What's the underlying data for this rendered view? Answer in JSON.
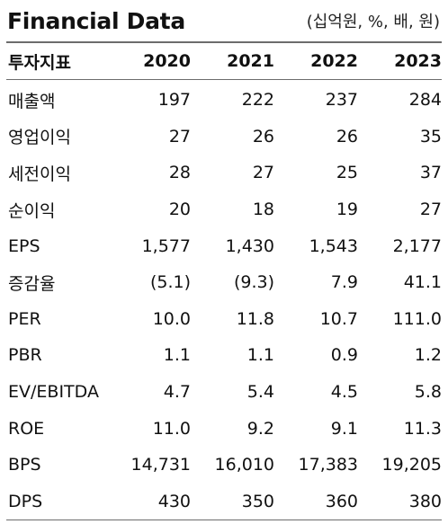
{
  "header": {
    "title": "Financial Data",
    "unit": "(십억원, %, 배, 원)"
  },
  "table": {
    "columns": [
      "투자지표",
      "2020",
      "2021",
      "2022",
      "2023"
    ],
    "rows": [
      {
        "label": "매출액",
        "values": [
          "197",
          "222",
          "237",
          "284"
        ]
      },
      {
        "label": "영업이익",
        "values": [
          "27",
          "26",
          "26",
          "35"
        ]
      },
      {
        "label": "세전이익",
        "values": [
          "28",
          "27",
          "25",
          "37"
        ]
      },
      {
        "label": "순이익",
        "values": [
          "20",
          "18",
          "19",
          "27"
        ]
      },
      {
        "label": "EPS",
        "values": [
          "1,577",
          "1,430",
          "1,543",
          "2,177"
        ]
      },
      {
        "label": "증감율",
        "values": [
          "(5.1)",
          "(9.3)",
          "7.9",
          "41.1"
        ]
      },
      {
        "label": "PER",
        "values": [
          "10.0",
          "11.8",
          "10.7",
          "111.0"
        ]
      },
      {
        "label": "PBR",
        "values": [
          "1.1",
          "1.1",
          "0.9",
          "1.2"
        ]
      },
      {
        "label": "EV/EBITDA",
        "values": [
          "4.7",
          "5.4",
          "4.5",
          "5.8"
        ]
      },
      {
        "label": "ROE",
        "values": [
          "11.0",
          "9.2",
          "9.1",
          "11.3"
        ]
      },
      {
        "label": "BPS",
        "values": [
          "14,731",
          "16,010",
          "17,383",
          "19,205"
        ]
      },
      {
        "label": "DPS",
        "values": [
          "430",
          "350",
          "360",
          "380"
        ]
      }
    ]
  }
}
